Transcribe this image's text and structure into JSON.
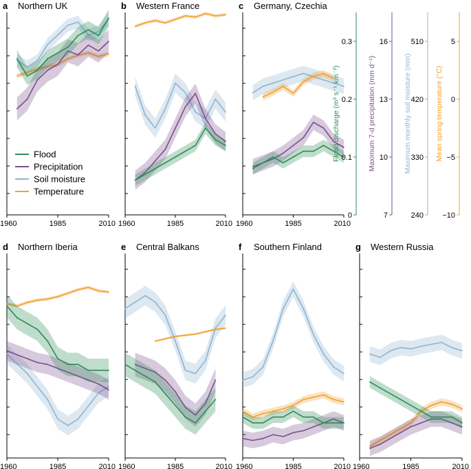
{
  "colors": {
    "flood": "#2e8b57",
    "precipitation": "#7b4f8e",
    "soil_moisture": "#8fb4d0",
    "temperature": "#f0a030"
  },
  "legend": {
    "position": "inside panel a, lower-left",
    "items": [
      {
        "key": "flood",
        "label": "Flood"
      },
      {
        "key": "precipitation",
        "label": "Precipitation"
      },
      {
        "key": "soil_moisture",
        "label": "Soil moisture"
      },
      {
        "key": "temperature",
        "label": "Temperature"
      }
    ]
  },
  "x_axis": {
    "ticks": [
      "1960",
      "1985",
      "2010"
    ],
    "range": [
      1960,
      2010
    ]
  },
  "right_axes": [
    {
      "key": "flood",
      "label": "Flood discharge (m³ s⁻¹ km⁻²)",
      "ticks": [
        "0",
        "0.1",
        "0.2",
        "0.3"
      ],
      "range": [
        0,
        0.35
      ]
    },
    {
      "key": "precipitation",
      "label": "Maximum 7-d precipitation (mm d⁻¹)",
      "ticks": [
        "7",
        "10",
        "13",
        "16"
      ],
      "range": [
        7,
        17.5
      ]
    },
    {
      "key": "soil_moisture",
      "label": "Maximum monthly soil moisture (mm)",
      "ticks": [
        "240",
        "330",
        "420",
        "510"
      ],
      "range": [
        240,
        555
      ]
    },
    {
      "key": "temperature",
      "label": "Mean spring temperature (°C)",
      "ticks": [
        "−10",
        "−5",
        "0",
        "5"
      ],
      "range": [
        -10,
        7.5
      ]
    }
  ],
  "chart_data": [
    {
      "letter": "a",
      "title": "Northern UK",
      "type": "line",
      "series": [
        {
          "name": "Flood",
          "x": [
            1965,
            1970,
            1975,
            1980,
            1985,
            1990,
            1995,
            2000,
            2005,
            2010
          ],
          "y": [
            0.27,
            0.24,
            0.25,
            0.27,
            0.28,
            0.29,
            0.31,
            0.32,
            0.31,
            0.34
          ],
          "spread": 0.015
        },
        {
          "name": "Precipitation",
          "x": [
            1965,
            1970,
            1975,
            1980,
            1985,
            1990,
            1995,
            2000,
            2005,
            2010
          ],
          "y": [
            12.5,
            13.0,
            14.0,
            14.5,
            14.8,
            15.5,
            15.3,
            15.8,
            15.5,
            16.0
          ],
          "spread": 0.6
        },
        {
          "name": "Soil moisture",
          "x": [
            1965,
            1970,
            1975,
            1980,
            1985,
            1990,
            1995,
            2000,
            2005,
            2010
          ],
          "y": [
            480,
            470,
            480,
            505,
            520,
            535,
            540,
            520,
            525,
            545
          ],
          "spread": 10
        },
        {
          "name": "Temperature",
          "x": [
            1965,
            1970,
            1975,
            1980,
            1985,
            1990,
            1995,
            2000,
            2005,
            2010
          ],
          "y": [
            2.0,
            2.3,
            2.6,
            2.8,
            3.0,
            3.5,
            3.8,
            4.0,
            3.7,
            3.9
          ],
          "spread": 0.2
        }
      ]
    },
    {
      "letter": "b",
      "title": "Western France",
      "type": "line",
      "series": [
        {
          "name": "Flood",
          "x": [
            1965,
            1970,
            1975,
            1980,
            1985,
            1990,
            1995,
            2000,
            2005,
            2010
          ],
          "y": [
            0.06,
            0.07,
            0.08,
            0.09,
            0.1,
            0.11,
            0.12,
            0.15,
            0.13,
            0.12
          ],
          "spread": 0.01
        },
        {
          "name": "Precipitation",
          "x": [
            1965,
            1970,
            1975,
            1980,
            1985,
            1990,
            1995,
            2000,
            2005,
            2010
          ],
          "y": [
            8.8,
            9.2,
            9.8,
            10.4,
            11.5,
            12.6,
            13.3,
            12.0,
            11.2,
            10.8
          ],
          "spread": 0.5
        },
        {
          "name": "Soil moisture",
          "x": [
            1965,
            1970,
            1975,
            1980,
            1985,
            1990,
            1995,
            2000,
            2005,
            2010
          ],
          "y": [
            440,
            395,
            375,
            405,
            445,
            430,
            400,
            390,
            420,
            400
          ],
          "spread": 15
        },
        {
          "name": "Temperature",
          "x": [
            1965,
            1970,
            1975,
            1980,
            1985,
            1990,
            1995,
            2000,
            2005,
            2010
          ],
          "y": [
            6.3,
            6.6,
            6.8,
            6.6,
            6.9,
            7.2,
            7.1,
            7.4,
            7.2,
            7.3
          ],
          "spread": 0.15
        }
      ]
    },
    {
      "letter": "c",
      "title": "Germany, Czechia",
      "type": "line",
      "series": [
        {
          "name": "Flood",
          "x": [
            1965,
            1970,
            1975,
            1980,
            1985,
            1990,
            1995,
            2000,
            2005,
            2010
          ],
          "y": [
            0.08,
            0.09,
            0.1,
            0.09,
            0.1,
            0.11,
            0.11,
            0.12,
            0.11,
            0.1
          ],
          "spread": 0.01
        },
        {
          "name": "Precipitation",
          "x": [
            1965,
            1970,
            1975,
            1980,
            1985,
            1990,
            1995,
            2000,
            2005,
            2010
          ],
          "y": [
            9.5,
            9.7,
            9.9,
            10.2,
            10.6,
            11.0,
            11.8,
            11.5,
            10.8,
            10.5
          ],
          "spread": 0.4
        },
        {
          "name": "Soil moisture",
          "x": [
            1965,
            1970,
            1975,
            1980,
            1985,
            1990,
            1995,
            2000,
            2005,
            2010
          ],
          "y": [
            430,
            440,
            445,
            450,
            455,
            460,
            455,
            450,
            445,
            440
          ],
          "spread": 12
        },
        {
          "name": "Temperature",
          "x": [
            1970,
            1975,
            1980,
            1985,
            1990,
            1995,
            2000,
            2005
          ],
          "y": [
            0.2,
            0.6,
            1.1,
            0.5,
            1.5,
            2.0,
            2.2,
            1.8
          ],
          "spread": 0.3
        }
      ]
    },
    {
      "letter": "d",
      "title": "Northern Iberia",
      "type": "line",
      "series": [
        {
          "name": "Flood",
          "x": [
            1960,
            1965,
            1970,
            1975,
            1980,
            1985,
            1990,
            1995,
            2000,
            2005,
            2010
          ],
          "y": [
            0.26,
            0.24,
            0.23,
            0.22,
            0.2,
            0.17,
            0.16,
            0.16,
            0.15,
            0.15,
            0.15
          ],
          "spread": 0.02
        },
        {
          "name": "Precipitation",
          "x": [
            1960,
            1965,
            1970,
            1975,
            1980,
            1985,
            1990,
            1995,
            2000,
            2005,
            2010
          ],
          "y": [
            12.5,
            12.3,
            12.1,
            11.9,
            11.8,
            11.6,
            11.4,
            11.2,
            11.0,
            10.8,
            10.5
          ],
          "spread": 0.5
        },
        {
          "name": "Soil moisture",
          "x": [
            1960,
            1965,
            1970,
            1975,
            1980,
            1985,
            1990,
            1995,
            2000,
            2005,
            2010
          ],
          "y": [
            400,
            385,
            370,
            350,
            330,
            300,
            290,
            300,
            320,
            340,
            350
          ],
          "spread": 15
        },
        {
          "name": "Temperature",
          "x": [
            1960,
            1965,
            1970,
            1975,
            1980,
            1985,
            1990,
            1995,
            2000,
            2005,
            2010
          ],
          "y": [
            3.2,
            3.0,
            3.3,
            3.5,
            3.6,
            3.8,
            4.1,
            4.4,
            4.6,
            4.3,
            4.2
          ],
          "spread": 0.15
        }
      ]
    },
    {
      "letter": "e",
      "title": "Central Balkans",
      "type": "line",
      "series": [
        {
          "name": "Flood",
          "x": [
            1960,
            1965,
            1970,
            1975,
            1980,
            1985,
            1990,
            1995,
            2000,
            2005
          ],
          "y": [
            0.16,
            0.15,
            0.14,
            0.13,
            0.11,
            0.09,
            0.07,
            0.06,
            0.08,
            0.1
          ],
          "spread": 0.02
        },
        {
          "name": "Precipitation",
          "x": [
            1965,
            1970,
            1975,
            1980,
            1985,
            1990,
            1995,
            2000,
            2005
          ],
          "y": [
            11.8,
            11.6,
            11.4,
            11.0,
            10.4,
            9.6,
            9.2,
            9.8,
            11.0
          ],
          "spread": 0.6
        },
        {
          "name": "Soil moisture",
          "x": [
            1960,
            1965,
            1970,
            1975,
            1980,
            1985,
            1990,
            1995,
            2000,
            2005,
            2010
          ],
          "y": [
            470,
            480,
            490,
            480,
            460,
            420,
            375,
            370,
            390,
            440,
            460
          ],
          "spread": 15
        },
        {
          "name": "Temperature",
          "x": [
            1975,
            1980,
            1985,
            1990,
            1995,
            2000,
            2005,
            2010
          ],
          "y": [
            0.0,
            0.2,
            0.4,
            0.5,
            0.6,
            0.8,
            1.0,
            1.1
          ],
          "spread": 0.1
        }
      ]
    },
    {
      "letter": "f",
      "title": "Southern Finland",
      "type": "line",
      "series": [
        {
          "name": "Flood",
          "x": [
            1960,
            1965,
            1970,
            1975,
            1980,
            1985,
            1990,
            1995,
            2000,
            2005,
            2010
          ],
          "y": [
            0.07,
            0.06,
            0.06,
            0.07,
            0.07,
            0.08,
            0.07,
            0.07,
            0.06,
            0.06,
            0.06
          ],
          "spread": 0.01
        },
        {
          "name": "Precipitation",
          "x": [
            1960,
            1965,
            1970,
            1975,
            1980,
            1985,
            1990,
            1995,
            2000,
            2005,
            2010
          ],
          "y": [
            8.0,
            7.9,
            8.0,
            8.2,
            8.1,
            8.3,
            8.4,
            8.6,
            8.8,
            9.0,
            8.8
          ],
          "spread": 0.4
        },
        {
          "name": "Soil moisture",
          "x": [
            1960,
            1965,
            1970,
            1975,
            1980,
            1985,
            1990,
            1995,
            2000,
            2005,
            2010
          ],
          "y": [
            360,
            365,
            380,
            420,
            470,
            500,
            470,
            430,
            400,
            380,
            370
          ],
          "spread": 12
        },
        {
          "name": "Temperature",
          "x": [
            1960,
            1965,
            1970,
            1975,
            1980,
            1985,
            1990,
            1995,
            2000,
            2005,
            2010
          ],
          "y": [
            -6.0,
            -6.5,
            -6.2,
            -6.0,
            -5.8,
            -5.5,
            -5.0,
            -4.8,
            -4.6,
            -5.0,
            -5.2
          ],
          "spread": 0.3
        }
      ]
    },
    {
      "letter": "g",
      "title": "Western Russia",
      "type": "line",
      "series": [
        {
          "name": "Flood",
          "x": [
            1965,
            1970,
            1975,
            1980,
            1985,
            1990,
            1995,
            2000,
            2005,
            2010
          ],
          "y": [
            0.13,
            0.12,
            0.11,
            0.1,
            0.09,
            0.08,
            0.07,
            0.07,
            0.07,
            0.06
          ],
          "spread": 0.01
        },
        {
          "name": "Precipitation",
          "x": [
            1965,
            1970,
            1975,
            1980,
            1985,
            1990,
            1995,
            2000,
            2005,
            2010
          ],
          "y": [
            7.5,
            7.7,
            8.0,
            8.3,
            8.6,
            8.8,
            9.0,
            9.0,
            8.8,
            8.6
          ],
          "spread": 0.4
        },
        {
          "name": "Soil moisture",
          "x": [
            1965,
            1970,
            1975,
            1980,
            1985,
            1990,
            1995,
            2000,
            2005,
            2010
          ],
          "y": [
            400,
            395,
            405,
            410,
            408,
            412,
            415,
            418,
            410,
            405
          ],
          "spread": 12
        },
        {
          "name": "Temperature",
          "x": [
            1965,
            1970,
            1975,
            1980,
            1985,
            1990,
            1995,
            2000,
            2005,
            2010
          ],
          "y": [
            -9.0,
            -8.5,
            -8.0,
            -7.5,
            -7.0,
            -6.0,
            -5.5,
            -5.2,
            -5.4,
            -5.8
          ],
          "spread": 0.3
        }
      ]
    }
  ]
}
